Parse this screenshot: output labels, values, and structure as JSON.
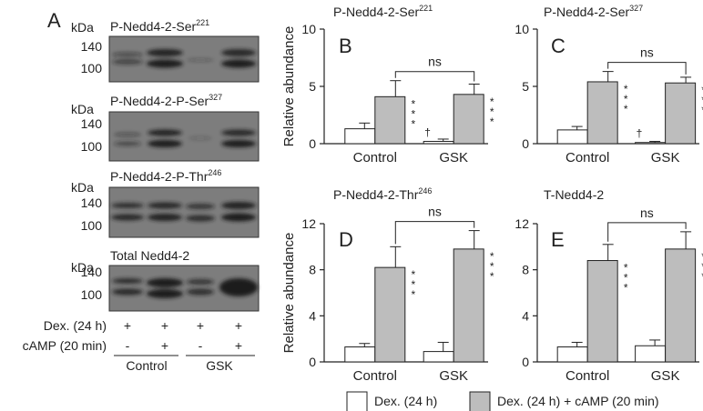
{
  "blot": {
    "letter": "A",
    "kda": "kDa",
    "panels": [
      {
        "title_base": "P-Nedd4-2-Ser",
        "title_sup": "221",
        "mw": [
          "140",
          "100"
        ]
      },
      {
        "title_base": "P-Nedd4-2-P-Ser",
        "title_sup": "327",
        "mw": [
          "140",
          "100"
        ]
      },
      {
        "title_base": "P-Nedd4-2-P-Thr",
        "title_sup": "246",
        "mw": [
          "140",
          "100"
        ]
      },
      {
        "title_base": "Total Nedd4-2",
        "title_sup": "",
        "mw": [
          "140",
          "100"
        ]
      }
    ],
    "dex_label": "Dex. (24 h)",
    "camp_label": "cAMP (20 min)",
    "dex_marks": [
      "+",
      "+",
      "+",
      "+"
    ],
    "camp_marks": [
      "-",
      "+",
      "-",
      "+"
    ],
    "groups": [
      "Control",
      "GSK"
    ]
  },
  "legend": {
    "dex": "Dex. (24 h)",
    "dex_camp": "Dex. (24 h) + cAMP (20 min)"
  },
  "colors": {
    "dex_bar": "#ffffff",
    "dex_camp_bar": "#bdbdbd"
  },
  "chart_data": [
    {
      "type": "bar",
      "letter": "B",
      "title_base": "P-Nedd4-2-Ser",
      "title_sup": "221",
      "ylabel": "Relative abundance",
      "ylim": [
        0,
        10
      ],
      "yticks": [
        "0",
        "5",
        "10"
      ],
      "categories": [
        "Control",
        "GSK"
      ],
      "series": [
        {
          "name": "Dex. (24 h)",
          "values": [
            1.3,
            0.2
          ],
          "errors": [
            0.5,
            0.2
          ]
        },
        {
          "name": "Dex. (24 h) + cAMP (20 min)",
          "values": [
            4.1,
            4.3
          ],
          "errors": [
            1.4,
            0.9
          ]
        }
      ],
      "stars": [
        "***",
        "***"
      ],
      "dagger": "†",
      "ns": "ns"
    },
    {
      "type": "bar",
      "letter": "C",
      "title_base": "P-Nedd4-2-Ser",
      "title_sup": "327",
      "ylabel": "",
      "ylim": [
        0,
        10
      ],
      "yticks": [
        "0",
        "5",
        "10"
      ],
      "categories": [
        "Control",
        "GSK"
      ],
      "series": [
        {
          "name": "Dex. (24 h)",
          "values": [
            1.2,
            0.1
          ],
          "errors": [
            0.3,
            0.1
          ]
        },
        {
          "name": "Dex. (24 h) + cAMP (20 min)",
          "values": [
            5.4,
            5.3
          ],
          "errors": [
            0.9,
            0.5
          ]
        }
      ],
      "stars": [
        "***",
        "***"
      ],
      "dagger": "†",
      "ns": "ns"
    },
    {
      "type": "bar",
      "letter": "D",
      "title_base": "P-Nedd4-2-Thr",
      "title_sup": "246",
      "ylabel": "Relative abundance",
      "ylim": [
        0,
        12
      ],
      "yticks": [
        "0",
        "4",
        "8",
        "12"
      ],
      "categories": [
        "Control",
        "GSK"
      ],
      "series": [
        {
          "name": "Dex. (24 h)",
          "values": [
            1.3,
            0.9
          ],
          "errors": [
            0.3,
            0.8
          ]
        },
        {
          "name": "Dex. (24 h) + cAMP (20 min)",
          "values": [
            8.2,
            9.8
          ],
          "errors": [
            1.8,
            1.6
          ]
        }
      ],
      "stars": [
        "***",
        "***"
      ],
      "dagger": "",
      "ns": "ns"
    },
    {
      "type": "bar",
      "letter": "E",
      "title_base": "T-Nedd4-2",
      "title_sup": "",
      "ylabel": "",
      "ylim": [
        0,
        12
      ],
      "yticks": [
        "0",
        "4",
        "8",
        "12"
      ],
      "categories": [
        "Control",
        "GSK"
      ],
      "series": [
        {
          "name": "Dex. (24 h)",
          "values": [
            1.3,
            1.4
          ],
          "errors": [
            0.4,
            0.5
          ]
        },
        {
          "name": "Dex. (24 h) + cAMP (20 min)",
          "values": [
            8.8,
            9.8
          ],
          "errors": [
            1.4,
            1.5
          ]
        }
      ],
      "stars": [
        "***",
        "***"
      ],
      "dagger": "",
      "ns": "ns"
    }
  ]
}
